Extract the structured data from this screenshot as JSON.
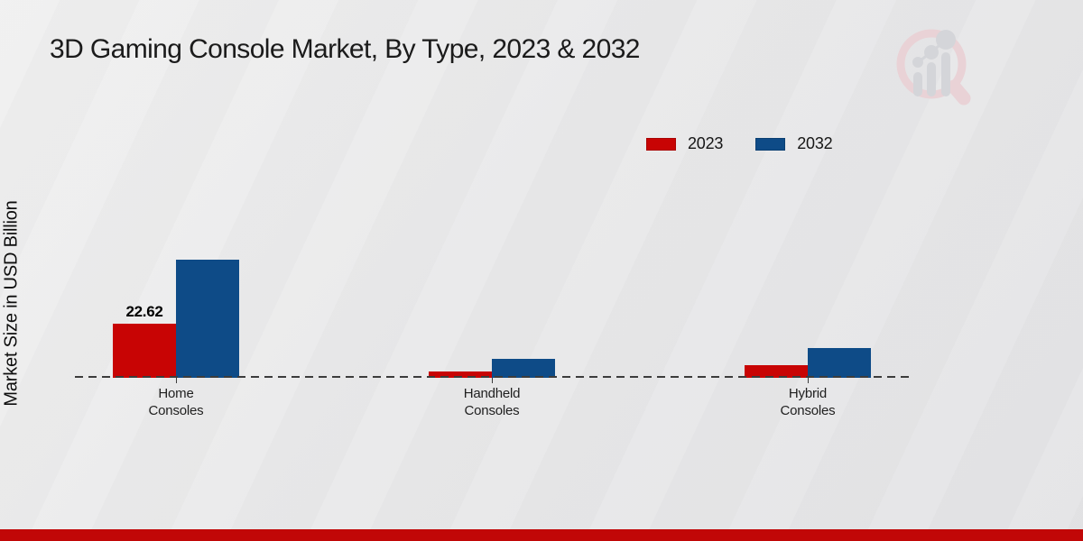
{
  "page": {
    "title": "3D Gaming Console Market, By Type, 2023 & 2032",
    "ylabel": "Market Size in USD Billion"
  },
  "legend": {
    "items": [
      {
        "label": "2023",
        "color": "#c80404"
      },
      {
        "label": "2032",
        "color": "#0e4b87"
      }
    ]
  },
  "chart_data": {
    "type": "bar",
    "title": "3D Gaming Console Market, By Type, 2023 & 2032",
    "ylabel": "Market Size in USD Billion",
    "xlabel": "",
    "categories": [
      "Home Consoles",
      "Handheld Consoles",
      "Hybrid Consoles"
    ],
    "series": [
      {
        "name": "2023",
        "color": "#c80404",
        "values": [
          22.62,
          2.6,
          5.2
        ],
        "data_labels": [
          "22.62",
          "",
          ""
        ]
      },
      {
        "name": "2032",
        "color": "#0e4b87",
        "values": [
          49.5,
          8.0,
          12.4
        ],
        "data_labels": [
          "",
          "",
          ""
        ]
      }
    ],
    "ylim": [
      0,
      55
    ],
    "grid": false,
    "baseline_style": "dashed",
    "legend_position": "top-right"
  },
  "branding": {
    "logo_name": "market-research-future-watermark",
    "logo_ring_color": "#e9d2d6",
    "logo_bar_color": "#d4d5d9"
  },
  "footer": {
    "strip_color": "#c10707"
  }
}
